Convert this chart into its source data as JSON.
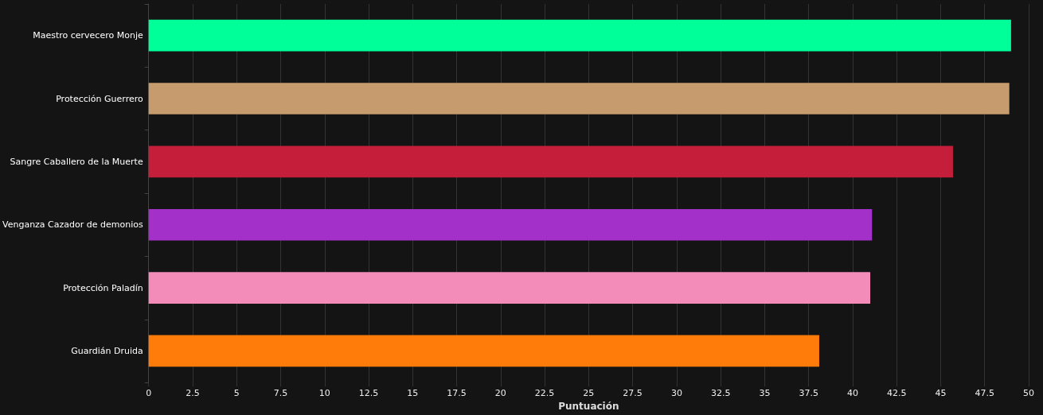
{
  "chart_data": {
    "type": "bar",
    "orientation": "horizontal",
    "xlabel": "Puntuación",
    "categories": [
      "Maestro cervecero Monje",
      "Protección Guerrero",
      "Sangre Caballero de la Muerte",
      "Venganza Cazador de demonios",
      "Protección Paladín",
      "Guardián Druida"
    ],
    "values": [
      49.0,
      48.9,
      45.7,
      41.1,
      41.0,
      38.1
    ],
    "colors": [
      "#00ff98",
      "#c69b6d",
      "#c41e3a",
      "#a330c9",
      "#f48cba",
      "#ff7c0a"
    ],
    "xlim": [
      0,
      50
    ],
    "xticks": [
      0,
      2.5,
      5,
      7.5,
      10,
      12.5,
      15,
      17.5,
      20,
      22.5,
      25,
      27.5,
      30,
      32.5,
      35,
      37.5,
      40,
      42.5,
      45,
      47.5,
      50
    ],
    "grid": "x"
  }
}
